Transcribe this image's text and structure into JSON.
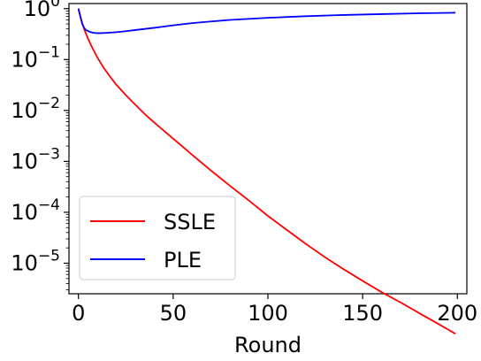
{
  "chart_data": {
    "type": "line",
    "title": "",
    "xlabel": "Round",
    "ylabel": "",
    "xlim": [
      -5,
      205
    ],
    "ylim_log10": [
      -5.6,
      0.1
    ],
    "yscale": "log",
    "grid": false,
    "legend_position": "lower-left",
    "x_ticks": [
      {
        "value": 0,
        "label": "0"
      },
      {
        "value": 50,
        "label": "50"
      },
      {
        "value": 100,
        "label": "100"
      },
      {
        "value": 150,
        "label": "150"
      },
      {
        "value": 200,
        "label": "200"
      }
    ],
    "y_ticks": [
      {
        "exp": 0,
        "base": "10",
        "sup": "0"
      },
      {
        "exp": -1,
        "base": "10",
        "sup": "−1"
      },
      {
        "exp": -2,
        "base": "10",
        "sup": "−2"
      },
      {
        "exp": -3,
        "base": "10",
        "sup": "−3"
      },
      {
        "exp": -4,
        "base": "10",
        "sup": "−4"
      },
      {
        "exp": -5,
        "base": "10",
        "sup": "−5"
      }
    ],
    "series": [
      {
        "name": "SSLE",
        "color": "#ff0000",
        "x": [
          0,
          1,
          2,
          3,
          5,
          7,
          10,
          13,
          16,
          20,
          25,
          30,
          35,
          40,
          50,
          60,
          70,
          80,
          90,
          100,
          110,
          120,
          130,
          140,
          150,
          160,
          170,
          180,
          190,
          199
        ],
        "y": [
          1.0,
          0.71,
          0.52,
          0.4,
          0.26,
          0.18,
          0.11,
          0.072,
          0.05,
          0.032,
          0.02,
          0.013,
          0.0085,
          0.0058,
          0.0028,
          0.00135,
          0.00066,
          0.00033,
          0.00017,
          8.5e-05,
          4.5e-05,
          2.4e-05,
          1.32e-05,
          7.6e-06,
          4.5e-06,
          2.7e-06,
          1.7e-06,
          1.04e-06,
          6.4e-07,
          4.1e-07
        ]
      },
      {
        "name": "PLE",
        "color": "#0000ff",
        "x": [
          0,
          1,
          2,
          3,
          4,
          6,
          8,
          10,
          12,
          15,
          20,
          25,
          30,
          40,
          50,
          60,
          70,
          80,
          100,
          120,
          140,
          160,
          180,
          199
        ],
        "y": [
          1.0,
          0.7,
          0.5,
          0.42,
          0.38,
          0.35,
          0.335,
          0.33,
          0.33,
          0.335,
          0.345,
          0.36,
          0.38,
          0.42,
          0.47,
          0.52,
          0.56,
          0.6,
          0.66,
          0.71,
          0.75,
          0.78,
          0.81,
          0.83
        ]
      }
    ]
  }
}
